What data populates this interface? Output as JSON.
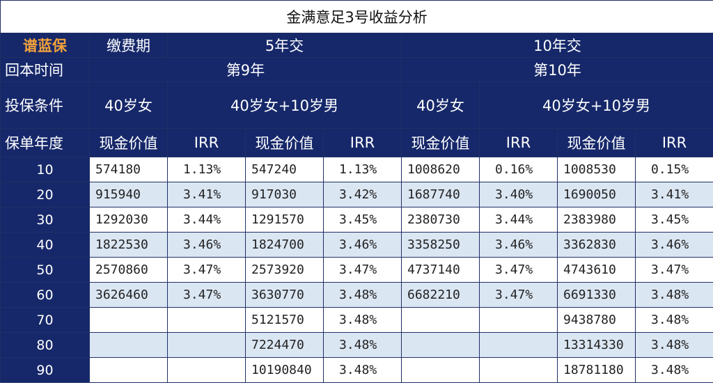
{
  "title": "金满意足3号收益分析",
  "brand": "谱蓝保",
  "pay_period_label": "缴费期",
  "return_time_label": "回本时间",
  "condition_label": "投保条件",
  "policy_year_label": "保单年度",
  "plans": [
    {
      "pay": "5年交",
      "return_year": "第9年",
      "cond_a": "40岁女",
      "cond_b": "40岁女+10岁男"
    },
    {
      "pay": "10年交",
      "return_year": "第10年",
      "cond_a": "40岁女",
      "cond_b": "40岁女+10岁男"
    }
  ],
  "col_labels": {
    "cash_value": "现金价值",
    "irr": "IRR"
  },
  "rows": [
    {
      "year": "10",
      "c": [
        "574180",
        "1.13%",
        "547240",
        "1.13%",
        "1008620",
        "0.16%",
        "1008530",
        "0.15%"
      ]
    },
    {
      "year": "20",
      "c": [
        "915940",
        "3.41%",
        "917030",
        "3.42%",
        "1687740",
        "3.40%",
        "1690050",
        "3.41%"
      ]
    },
    {
      "year": "30",
      "c": [
        "1292030",
        "3.44%",
        "1291570",
        "3.45%",
        "2380730",
        "3.44%",
        "2383980",
        "3.45%"
      ]
    },
    {
      "year": "40",
      "c": [
        "1822530",
        "3.46%",
        "1824700",
        "3.46%",
        "3358250",
        "3.46%",
        "3362830",
        "3.46%"
      ]
    },
    {
      "year": "50",
      "c": [
        "2570860",
        "3.47%",
        "2573920",
        "3.47%",
        "4737140",
        "3.47%",
        "4743610",
        "3.47%"
      ]
    },
    {
      "year": "60",
      "c": [
        "3626460",
        "3.47%",
        "3630770",
        "3.48%",
        "6682210",
        "3.47%",
        "6691330",
        "3.48%"
      ]
    },
    {
      "year": "70",
      "c": [
        "",
        "",
        "5121570",
        "3.48%",
        "",
        "",
        "9438780",
        "3.48%"
      ]
    },
    {
      "year": "80",
      "c": [
        "",
        "",
        "7224470",
        "3.48%",
        "",
        "",
        "13314330",
        "3.48%"
      ]
    },
    {
      "year": "90",
      "c": [
        "",
        "",
        "10190840",
        "3.48%",
        "",
        "",
        "18781180",
        "3.48%"
      ]
    }
  ],
  "colors": {
    "header_bg": "#16286a",
    "brand": "#f2a23a",
    "stripe": "#dbe6f3",
    "border": "#1f2f66"
  }
}
